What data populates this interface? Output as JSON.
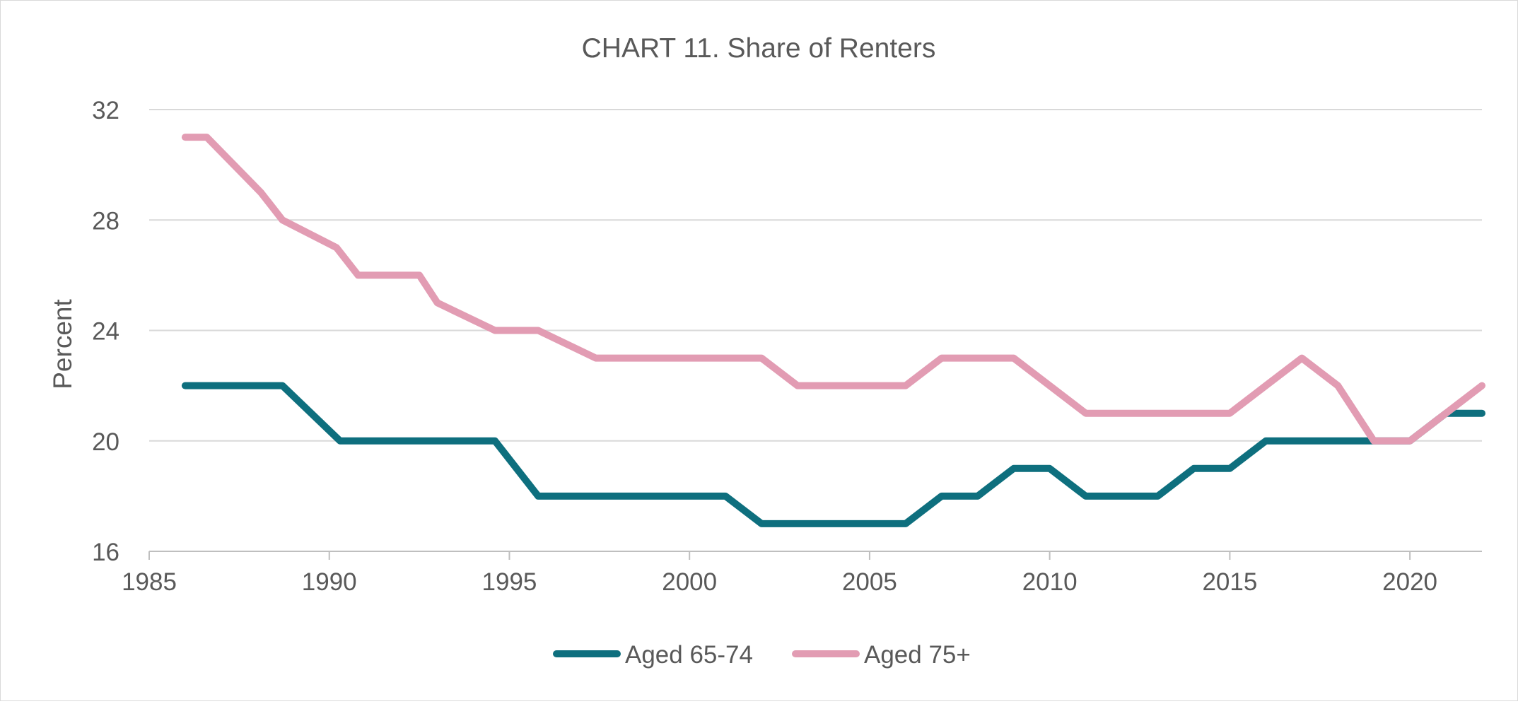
{
  "chart_data": {
    "type": "line",
    "title": "CHART 11. Share of Renters",
    "xlabel": "",
    "ylabel": "Percent",
    "xlim": [
      1985,
      2022
    ],
    "ylim": [
      16,
      32
    ],
    "x_ticks": [
      1985,
      1990,
      1995,
      2000,
      2005,
      2010,
      2015,
      2020
    ],
    "y_ticks": [
      16,
      20,
      24,
      28,
      32
    ],
    "grid": true,
    "legend": "bottom",
    "series": [
      {
        "name": "Aged 65-74",
        "color": "#0e6f7e",
        "points": [
          [
            1986,
            22
          ],
          [
            1988.7,
            22
          ],
          [
            1990.3,
            20
          ],
          [
            1994.6,
            20
          ],
          [
            1995.8,
            18
          ],
          [
            2001,
            18
          ],
          [
            2002,
            17
          ],
          [
            2006,
            17
          ],
          [
            2007,
            18
          ],
          [
            2008,
            18
          ],
          [
            2009,
            19
          ],
          [
            2010,
            19
          ],
          [
            2011,
            18
          ],
          [
            2013,
            18
          ],
          [
            2014,
            19
          ],
          [
            2015,
            19
          ],
          [
            2016,
            20
          ],
          [
            2019,
            20
          ],
          [
            2020,
            20
          ],
          [
            2021,
            21
          ],
          [
            2022,
            21
          ]
        ]
      },
      {
        "name": "Aged 75+",
        "color": "#e29cb3",
        "points": [
          [
            1986,
            31
          ],
          [
            1986.6,
            31
          ],
          [
            1988.1,
            29
          ],
          [
            1988.7,
            28
          ],
          [
            1990.2,
            27
          ],
          [
            1990.8,
            26
          ],
          [
            1992.5,
            26
          ],
          [
            1993,
            25
          ],
          [
            1994.6,
            24
          ],
          [
            1995.8,
            24
          ],
          [
            1997.4,
            23
          ],
          [
            2002,
            23
          ],
          [
            2003,
            22
          ],
          [
            2006,
            22
          ],
          [
            2007,
            23
          ],
          [
            2009,
            23
          ],
          [
            2011,
            21
          ],
          [
            2015,
            21
          ],
          [
            2016,
            22
          ],
          [
            2017,
            23
          ],
          [
            2018,
            22
          ],
          [
            2019,
            20
          ],
          [
            2020,
            20
          ],
          [
            2022,
            22
          ]
        ]
      }
    ]
  }
}
